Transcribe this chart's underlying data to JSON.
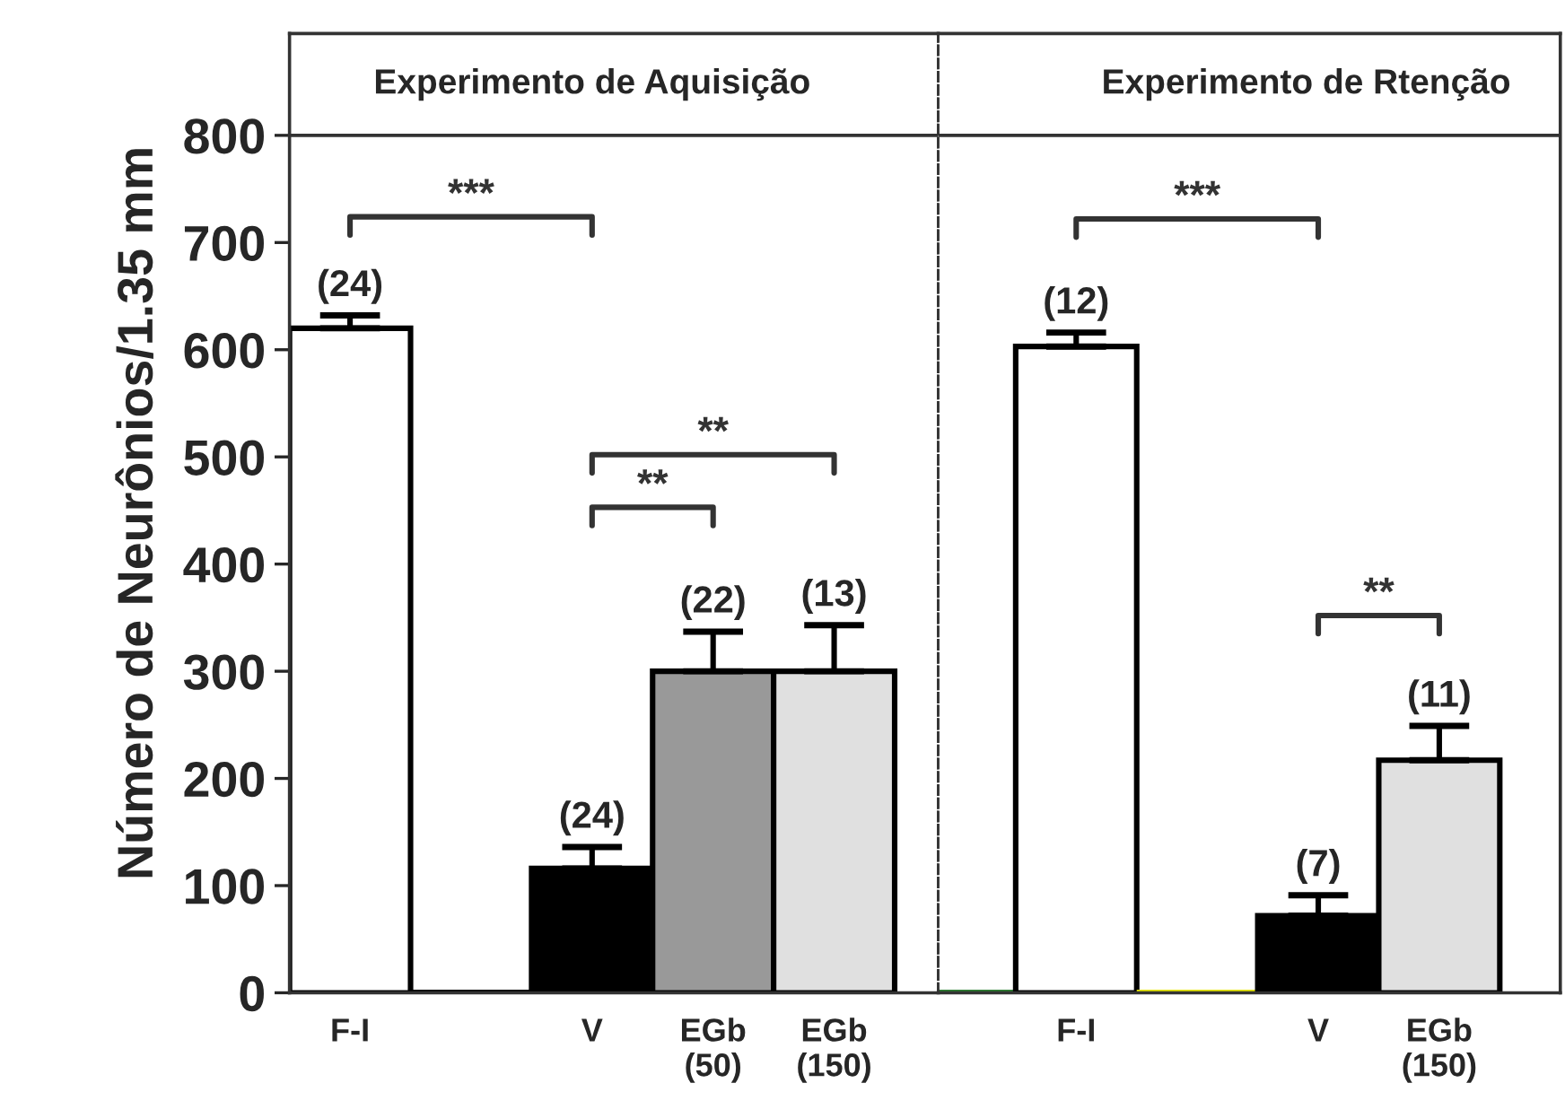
{
  "chart_data": [
    {
      "type": "bar",
      "ylabel": "Número de Neurônios/1.35 mm",
      "categories": [
        "F-I",
        null,
        "V",
        "EGb\n(50)",
        "EGb\n(150)"
      ],
      "values": [
        620,
        0,
        116,
        300,
        300
      ],
      "errors": [
        12,
        null,
        20,
        37,
        43
      ],
      "colors": [
        "#ffffff",
        "#000000",
        "#000000",
        "#999999",
        "#e0e0e0"
      ],
      "ylim": [
        0,
        895
      ],
      "yticks": [
        0,
        100,
        200,
        300,
        400,
        500,
        600,
        700,
        800
      ],
      "ref_lines": [
        {
          "axis": "y",
          "value": 800,
          "line_style": "solid",
          "color": "#333333"
        }
      ],
      "annotations": [
        "Experimento de Aquisição",
        "***",
        "**",
        "**",
        "(24)",
        "(24)",
        "(22)",
        "(13)"
      ],
      "grid": false,
      "legend": false
    },
    {
      "type": "bar",
      "categories": [
        null,
        "F-I",
        null,
        "V",
        "EGb\n(150)"
      ],
      "values": [
        0,
        603,
        0,
        72,
        217
      ],
      "errors": [
        null,
        13,
        null,
        19,
        32
      ],
      "colors": [
        "#2e7d32",
        "#ffffff",
        "#e6e600",
        "#000000",
        "#e0e0e0"
      ],
      "ylim": [
        0,
        895
      ],
      "yticks": [
        0,
        100,
        200,
        300,
        400,
        500,
        600,
        700,
        800
      ],
      "tick_labels": "x",
      "ref_lines": [
        {
          "axis": "y",
          "value": 800,
          "line_style": "solid",
          "color": "#333333"
        }
      ],
      "annotations": [
        "Experimento de Rtenção",
        "***",
        "**",
        "(12)",
        "(7)",
        "(11)"
      ],
      "grid": false,
      "legend": false
    }
  ]
}
